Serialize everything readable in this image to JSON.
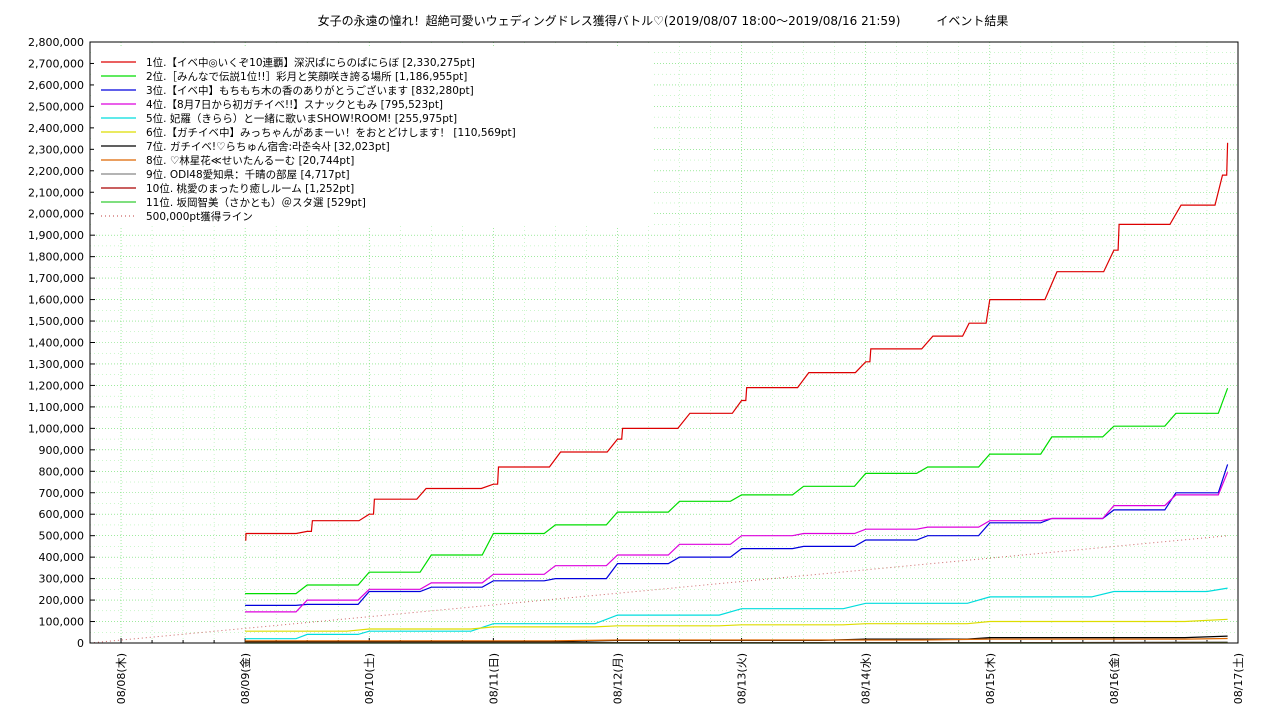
{
  "chart_data": {
    "type": "line",
    "title": "女子の永遠の憧れ！超絶可愛いウェディングドレス獲得バトル♡(2019/08/07 18:00～2019/08/16 21:59)　　　イベント結果",
    "ylim": [
      0,
      2800000
    ],
    "y_ticks": [
      "0",
      "100,000",
      "200,000",
      "300,000",
      "400,000",
      "500,000",
      "600,000",
      "700,000",
      "800,000",
      "900,000",
      "1,000,000",
      "1,100,000",
      "1,200,000",
      "1,300,000",
      "1,400,000",
      "1,500,000",
      "1,600,000",
      "1,700,000",
      "1,800,000",
      "1,900,000",
      "2,000,000",
      "2,100,000",
      "2,200,000",
      "2,300,000",
      "2,400,000",
      "2,500,000",
      "2,600,000",
      "2,700,000",
      "2,800,000"
    ],
    "x_ticks": [
      "08/08(木)",
      "08/09(金)",
      "08/10(土)",
      "08/11(日)",
      "08/12(月)",
      "08/13(火)",
      "08/14(水)",
      "08/15(木)",
      "08/16(金)",
      "08/17(土)"
    ],
    "xlim": [
      "2019/08/07 18:00",
      "2019/08/17 00:00"
    ],
    "grid": true,
    "legend_position": "top-left",
    "series": [
      {
        "name": "1位.【イベ中◎いくぞ10連覇】深沢ぱにらのぱにらぼ [2,330,275pt]",
        "color": "#dd0000",
        "points": [
          [
            "08/09 00:00",
            480000
          ],
          [
            "08/09 00:10",
            510000
          ],
          [
            "08/09 12:00",
            520000
          ],
          [
            "08/09 13:00",
            570000
          ],
          [
            "08/10 00:00",
            600000
          ],
          [
            "08/10 01:00",
            670000
          ],
          [
            "08/10 11:00",
            720000
          ],
          [
            "08/11 00:00",
            740000
          ],
          [
            "08/11 01:00",
            820000
          ],
          [
            "08/11 13:00",
            890000
          ],
          [
            "08/12 00:00",
            950000
          ],
          [
            "08/12 01:00",
            1000000
          ],
          [
            "08/12 14:00",
            1070000
          ],
          [
            "08/13 00:00",
            1130000
          ],
          [
            "08/13 01:00",
            1190000
          ],
          [
            "08/13 13:00",
            1260000
          ],
          [
            "08/14 00:00",
            1310000
          ],
          [
            "08/14 01:00",
            1370000
          ],
          [
            "08/14 13:00",
            1430000
          ],
          [
            "08/14 20:00",
            1490000
          ],
          [
            "08/15 00:00",
            1600000
          ],
          [
            "08/15 13:00",
            1730000
          ],
          [
            "08/16 00:00",
            1830000
          ],
          [
            "08/16 01:00",
            1950000
          ],
          [
            "08/16 13:00",
            2040000
          ],
          [
            "08/16 21:00",
            2180000
          ],
          [
            "08/16 21:59",
            2330275
          ]
        ]
      },
      {
        "name": "2位.［みんなで伝説1位!!］彩月と笑顔咲き誇る場所 [1,186,955pt]",
        "color": "#00dd00",
        "points": [
          [
            "08/09 00:00",
            230000
          ],
          [
            "08/09 12:00",
            270000
          ],
          [
            "08/10 00:00",
            330000
          ],
          [
            "08/10 12:00",
            410000
          ],
          [
            "08/11 00:00",
            510000
          ],
          [
            "08/11 12:00",
            550000
          ],
          [
            "08/12 00:00",
            610000
          ],
          [
            "08/12 12:00",
            660000
          ],
          [
            "08/13 00:00",
            690000
          ],
          [
            "08/13 12:00",
            730000
          ],
          [
            "08/14 00:00",
            790000
          ],
          [
            "08/14 12:00",
            820000
          ],
          [
            "08/15 00:00",
            880000
          ],
          [
            "08/15 12:00",
            960000
          ],
          [
            "08/16 00:00",
            1010000
          ],
          [
            "08/16 12:00",
            1070000
          ],
          [
            "08/16 21:59",
            1186955
          ]
        ]
      },
      {
        "name": "3位.【イベ中】もちもち木の香のありがとうございます [832,280pt]",
        "color": "#0000dd",
        "points": [
          [
            "08/09 00:00",
            175000
          ],
          [
            "08/09 12:00",
            180000
          ],
          [
            "08/10 00:00",
            240000
          ],
          [
            "08/10 12:00",
            260000
          ],
          [
            "08/11 00:00",
            290000
          ],
          [
            "08/11 12:00",
            300000
          ],
          [
            "08/12 00:00",
            370000
          ],
          [
            "08/12 12:00",
            400000
          ],
          [
            "08/13 00:00",
            440000
          ],
          [
            "08/13 12:00",
            450000
          ],
          [
            "08/14 00:00",
            480000
          ],
          [
            "08/14 12:00",
            500000
          ],
          [
            "08/15 00:00",
            560000
          ],
          [
            "08/15 12:00",
            580000
          ],
          [
            "08/16 00:00",
            620000
          ],
          [
            "08/16 12:00",
            700000
          ],
          [
            "08/16 21:59",
            832280
          ]
        ]
      },
      {
        "name": "4位.【8月7日から初ガチイベ!!】スナックともみ [795,523pt]",
        "color": "#dd00dd",
        "points": [
          [
            "08/09 00:00",
            145000
          ],
          [
            "08/09 12:00",
            200000
          ],
          [
            "08/10 00:00",
            250000
          ],
          [
            "08/10 12:00",
            280000
          ],
          [
            "08/11 00:00",
            320000
          ],
          [
            "08/11 12:00",
            360000
          ],
          [
            "08/12 00:00",
            410000
          ],
          [
            "08/12 12:00",
            460000
          ],
          [
            "08/13 00:00",
            500000
          ],
          [
            "08/13 12:00",
            510000
          ],
          [
            "08/14 00:00",
            530000
          ],
          [
            "08/14 12:00",
            540000
          ],
          [
            "08/15 00:00",
            570000
          ],
          [
            "08/15 12:00",
            580000
          ],
          [
            "08/16 00:00",
            640000
          ],
          [
            "08/16 12:00",
            690000
          ],
          [
            "08/16 21:59",
            795523
          ]
        ]
      },
      {
        "name": "5位. 妃羅（きらら）と一緒に歌いまSHOW!ROOM! [255,975pt]",
        "color": "#00dddd",
        "points": [
          [
            "08/09 00:00",
            20000
          ],
          [
            "08/09 12:00",
            40000
          ],
          [
            "08/10 00:00",
            55000
          ],
          [
            "08/11 00:00",
            90000
          ],
          [
            "08/12 00:00",
            130000
          ],
          [
            "08/13 00:00",
            160000
          ],
          [
            "08/14 00:00",
            185000
          ],
          [
            "08/15 00:00",
            215000
          ],
          [
            "08/16 00:00",
            240000
          ],
          [
            "08/16 21:59",
            255975
          ]
        ]
      },
      {
        "name": "6位.【ガチイベ中】みっちゃんがあまーい！をおとどけします！ [110,569pt]",
        "color": "#dddd00",
        "points": [
          [
            "08/09 00:00",
            55000
          ],
          [
            "08/10 00:00",
            65000
          ],
          [
            "08/11 00:00",
            75000
          ],
          [
            "08/12 00:00",
            80000
          ],
          [
            "08/13 00:00",
            85000
          ],
          [
            "08/14 00:00",
            90000
          ],
          [
            "08/15 00:00",
            100000
          ],
          [
            "08/16 21:59",
            110569
          ]
        ]
      },
      {
        "name": "7位. ガチイベ!♡らちゅん宿舎:라춘숙사 [32,023pt]",
        "color": "#000000",
        "points": [
          [
            "08/09 00:00",
            5000
          ],
          [
            "08/12 00:00",
            12000
          ],
          [
            "08/14 00:00",
            18000
          ],
          [
            "08/15 00:00",
            25000
          ],
          [
            "08/16 21:59",
            32023
          ]
        ]
      },
      {
        "name": "8位. ♡林星花≪せいたんるーむ [20,744pt]",
        "color": "#dd6600",
        "points": [
          [
            "08/09 00:00",
            10000
          ],
          [
            "08/12 00:00",
            14000
          ],
          [
            "08/15 00:00",
            18000
          ],
          [
            "08/16 21:59",
            20744
          ]
        ]
      },
      {
        "name": "9位. ODI48愛知県：千晴の部屋 [4,717pt]",
        "color": "#888888",
        "points": [
          [
            "08/09 00:00",
            2000
          ],
          [
            "08/16 21:59",
            4717
          ]
        ]
      },
      {
        "name": "10位. 桃愛のまったり癒しルーム [1,252pt]",
        "color": "#aa0000",
        "points": [
          [
            "08/09 00:00",
            500
          ],
          [
            "08/16 21:59",
            1252
          ]
        ]
      },
      {
        "name": "11位. 坂岡智美（さかとも）＠スタ選 [529pt]",
        "color": "#33cc33",
        "points": [
          [
            "08/09 00:00",
            200
          ],
          [
            "08/16 21:59",
            529
          ]
        ]
      },
      {
        "name": "500,000pt獲得ライン",
        "color": "#cc6666",
        "dotted": true,
        "points": [
          [
            "08/07 18:00",
            0
          ],
          [
            "08/16 21:59",
            500000
          ]
        ]
      }
    ]
  }
}
